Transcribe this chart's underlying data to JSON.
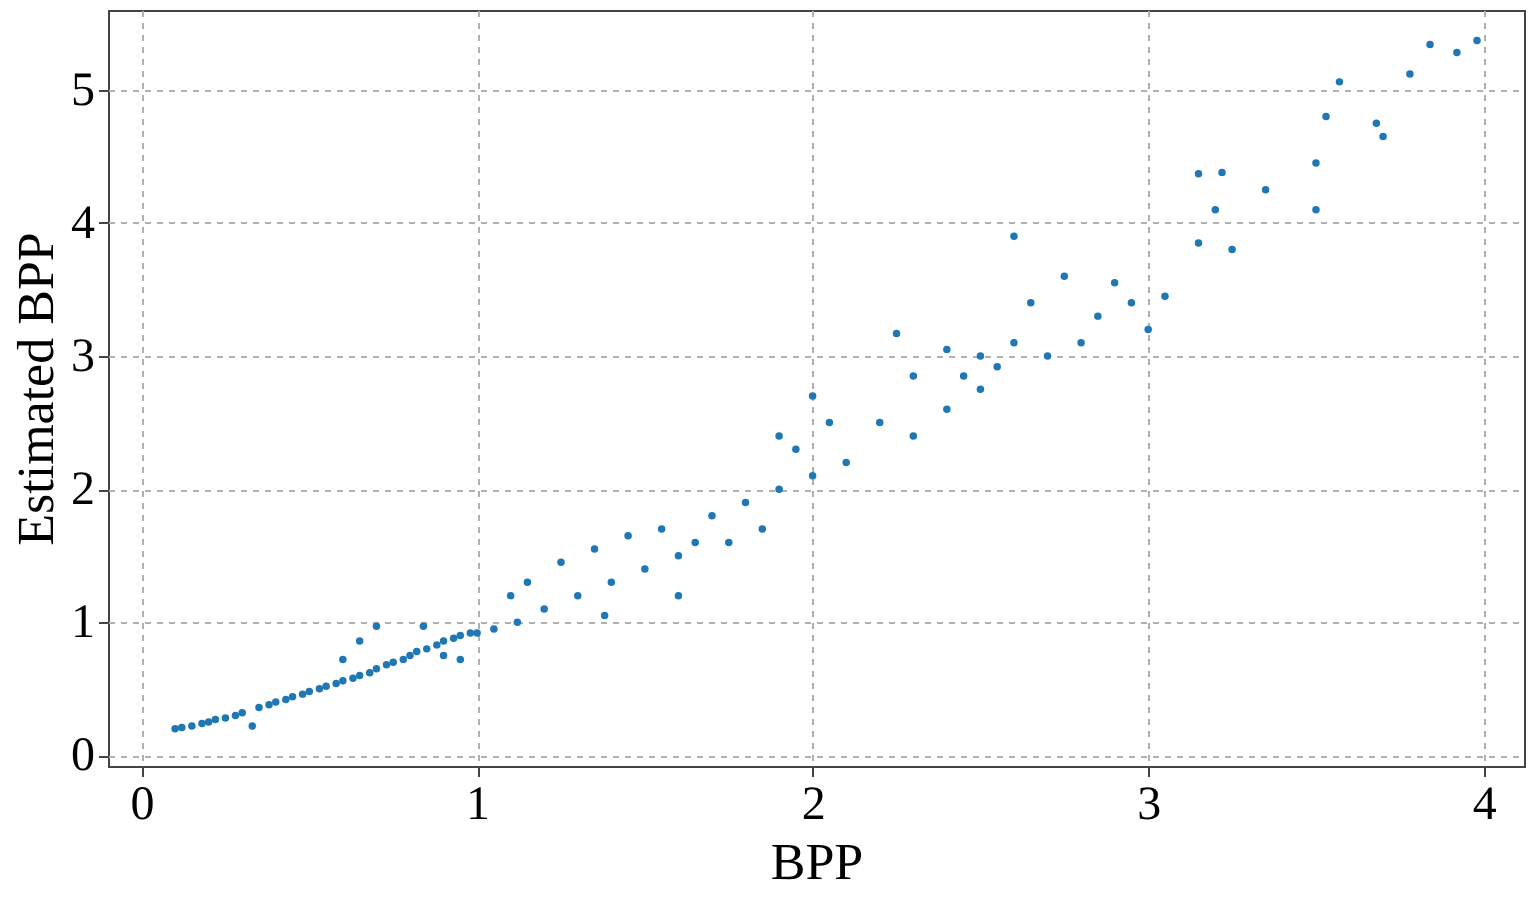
{
  "chart_data": {
    "type": "scatter",
    "xlabel": "BPP",
    "ylabel": "Estimated BPP",
    "x": [
      0.1,
      0.12,
      0.15,
      0.18,
      0.2,
      0.22,
      0.25,
      0.28,
      0.3,
      0.33,
      0.35,
      0.38,
      0.4,
      0.43,
      0.45,
      0.48,
      0.5,
      0.53,
      0.55,
      0.58,
      0.6,
      0.6,
      0.63,
      0.65,
      0.65,
      0.68,
      0.7,
      0.7,
      0.73,
      0.75,
      0.78,
      0.8,
      0.82,
      0.84,
      0.85,
      0.88,
      0.9,
      0.9,
      0.93,
      0.95,
      0.95,
      0.98,
      1.0,
      1.05,
      1.1,
      1.12,
      1.15,
      1.2,
      1.25,
      1.3,
      1.35,
      1.38,
      1.4,
      1.45,
      1.5,
      1.55,
      1.6,
      1.6,
      1.65,
      1.7,
      1.75,
      1.8,
      1.85,
      1.9,
      1.9,
      1.95,
      2.0,
      2.0,
      2.05,
      2.1,
      2.2,
      2.25,
      2.3,
      2.3,
      2.4,
      2.4,
      2.45,
      2.5,
      2.5,
      2.55,
      2.6,
      2.6,
      2.65,
      2.7,
      2.75,
      2.8,
      2.85,
      2.9,
      2.95,
      3.0,
      3.05,
      3.15,
      3.15,
      3.2,
      3.22,
      3.25,
      3.35,
      3.5,
      3.5,
      3.53,
      3.57,
      3.68,
      3.7,
      3.78,
      3.84,
      3.92,
      3.98
    ],
    "values": [
      0.2,
      0.21,
      0.22,
      0.24,
      0.25,
      0.27,
      0.28,
      0.3,
      0.32,
      0.22,
      0.36,
      0.38,
      0.4,
      0.42,
      0.44,
      0.46,
      0.48,
      0.5,
      0.52,
      0.54,
      0.56,
      0.72,
      0.58,
      0.6,
      0.86,
      0.62,
      0.65,
      0.97,
      0.68,
      0.7,
      0.72,
      0.75,
      0.78,
      0.97,
      0.8,
      0.83,
      0.86,
      0.75,
      0.88,
      0.9,
      0.72,
      0.92,
      0.92,
      0.95,
      1.2,
      1.0,
      1.3,
      1.1,
      1.45,
      1.2,
      1.55,
      1.05,
      1.3,
      1.65,
      1.4,
      1.7,
      1.5,
      1.2,
      1.6,
      1.8,
      1.6,
      1.9,
      1.7,
      2.0,
      2.4,
      2.3,
      2.1,
      2.7,
      2.5,
      2.2,
      2.5,
      3.17,
      2.85,
      2.4,
      2.6,
      3.05,
      2.85,
      3.0,
      2.75,
      2.92,
      3.9,
      3.1,
      3.4,
      3.0,
      3.6,
      3.1,
      3.3,
      3.55,
      3.4,
      3.2,
      3.45,
      3.85,
      4.37,
      4.1,
      4.38,
      3.8,
      4.25,
      4.45,
      4.1,
      4.8,
      5.06,
      4.75,
      4.65,
      5.12,
      5.34,
      5.28,
      5.37
    ],
    "color": "#1f77b4",
    "xlim": [
      -0.1,
      4.12
    ],
    "ylim": [
      -0.08,
      5.6
    ],
    "xticks": [
      0,
      1,
      2,
      3,
      4
    ],
    "yticks": [
      0,
      1,
      2,
      3,
      4,
      5
    ],
    "grid": true
  }
}
